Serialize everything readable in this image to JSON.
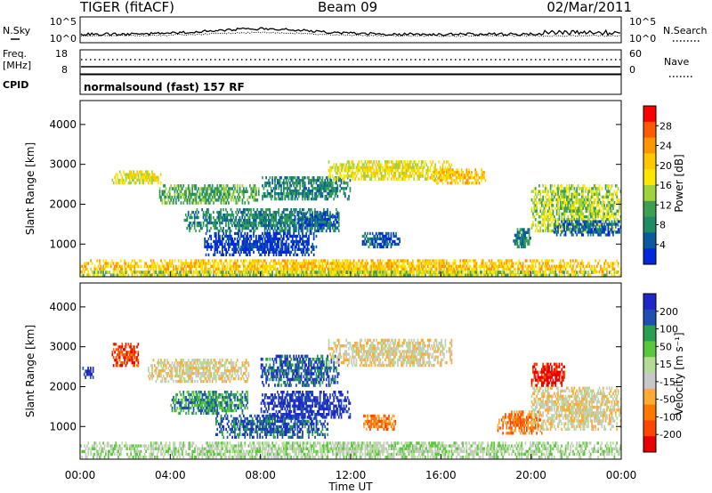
{
  "header": {
    "station": "TIGER (fitACF)",
    "beam": "Beam 09",
    "date": "02/Mar/2011"
  },
  "panels": {
    "nsky": {
      "label": "N.Sky",
      "right_label": "N.Search",
      "ticks_left": [
        "10^5",
        "10^0"
      ],
      "ticks_right": [
        "10^5",
        "10^0"
      ]
    },
    "freq": {
      "label_line1": "Freq.",
      "label_line2": "[MHz]",
      "ticks_left": [
        "18",
        "8"
      ],
      "right_label": "Nave",
      "ticks_right": [
        "60",
        "0"
      ]
    },
    "cpid": {
      "label": "CPID",
      "text": "normalsound (fast) 157 RF"
    }
  },
  "colorbars": {
    "power": {
      "label": "Power [dB]",
      "ticks": [
        "28",
        "24",
        "20",
        "16",
        "12",
        "8",
        "4"
      ],
      "colors": [
        "#ff0000",
        "#ff5a00",
        "#ff9600",
        "#ffc800",
        "#ffe600",
        "#a0d23c",
        "#3ca050",
        "#1e8c64",
        "#0a5aa0",
        "#0028dc"
      ]
    },
    "velocity": {
      "label": "Velocity [m s⁻¹]",
      "ticks": [
        "200",
        "100",
        "50",
        "15",
        "-15",
        "-50",
        "-100",
        "-200"
      ],
      "colors": [
        "#1e28c8",
        "#1e50b4",
        "#28a050",
        "#5ac83c",
        "#b4dc96",
        "#c8c8c8",
        "#ffaa32",
        "#ff7800",
        "#ff4600",
        "#e60000"
      ]
    }
  },
  "x_axis": {
    "label": "Time UT",
    "ticks": [
      "00:00",
      "04:00",
      "08:00",
      "12:00",
      "16:00",
      "20:00",
      "00:00"
    ]
  },
  "chart_data": [
    {
      "type": "heatmap",
      "title": "Power",
      "xlabel": "Time UT",
      "ylabel": "Slant Range [km]",
      "x_range_hours": [
        0,
        24
      ],
      "ylim": [
        180,
        4600
      ],
      "y_ticks": [
        1000,
        2000,
        3000,
        4000
      ],
      "colorbar": "Power [dB]",
      "regions": [
        {
          "t0": 0.0,
          "t1": 24.0,
          "r0": 200,
          "r1": 620,
          "level": 3
        },
        {
          "t0": 0.0,
          "t1": 24.0,
          "r0": 180,
          "r1": 330,
          "level": 5
        },
        {
          "t0": 1.4,
          "t1": 3.6,
          "r0": 2500,
          "r1": 2850,
          "level": 4
        },
        {
          "t0": 3.5,
          "t1": 8.0,
          "r0": 2000,
          "r1": 2500,
          "level": 6
        },
        {
          "t0": 4.6,
          "t1": 11.5,
          "r0": 1300,
          "r1": 1900,
          "level": 7
        },
        {
          "t0": 5.5,
          "t1": 10.5,
          "r0": 700,
          "r1": 1300,
          "level": 9
        },
        {
          "t0": 9.5,
          "t1": 11.5,
          "r0": 1300,
          "r1": 1800,
          "level": 8
        },
        {
          "t0": 8.0,
          "t1": 12.0,
          "r0": 2100,
          "r1": 2700,
          "level": 7
        },
        {
          "t0": 12.5,
          "t1": 14.2,
          "r0": 900,
          "r1": 1300,
          "level": 8
        },
        {
          "t0": 11.0,
          "t1": 16.5,
          "r0": 2600,
          "r1": 3100,
          "level": 4
        },
        {
          "t0": 15.5,
          "t1": 18.0,
          "r0": 2500,
          "r1": 2900,
          "level": 3
        },
        {
          "t0": 19.2,
          "t1": 20.0,
          "r0": 900,
          "r1": 1400,
          "level": 7
        },
        {
          "t0": 20.0,
          "t1": 24.0,
          "r0": 1300,
          "r1": 2500,
          "level": 5
        },
        {
          "t0": 21.0,
          "t1": 24.0,
          "r0": 1200,
          "r1": 1600,
          "level": 8
        }
      ]
    },
    {
      "type": "heatmap",
      "title": "Velocity",
      "xlabel": "Time UT",
      "ylabel": "Slant Range [km]",
      "x_range_hours": [
        0,
        24
      ],
      "ylim": [
        180,
        4600
      ],
      "y_ticks": [
        1000,
        2000,
        3000,
        4000
      ],
      "colorbar": "Velocity [m s⁻¹]",
      "regions": [
        {
          "t0": 0.0,
          "t1": 24.0,
          "r0": 200,
          "r1": 620,
          "level": 4
        },
        {
          "t0": 0.1,
          "t1": 0.6,
          "r0": 2200,
          "r1": 2500,
          "level": 0
        },
        {
          "t0": 1.4,
          "t1": 2.6,
          "r0": 2500,
          "r1": 3100,
          "level": 8
        },
        {
          "t0": 3.0,
          "t1": 7.5,
          "r0": 2100,
          "r1": 2700,
          "level": 5
        },
        {
          "t0": 4.0,
          "t1": 7.5,
          "r0": 1300,
          "r1": 1900,
          "level": 2
        },
        {
          "t0": 6.0,
          "t1": 11.0,
          "r0": 700,
          "r1": 1300,
          "level": 1
        },
        {
          "t0": 8.0,
          "t1": 12.0,
          "r0": 1200,
          "r1": 1900,
          "level": 0
        },
        {
          "t0": 8.0,
          "t1": 11.5,
          "r0": 2000,
          "r1": 2800,
          "level": 1
        },
        {
          "t0": 11.0,
          "t1": 16.5,
          "r0": 2500,
          "r1": 3200,
          "level": 5
        },
        {
          "t0": 12.5,
          "t1": 14.0,
          "r0": 900,
          "r1": 1300,
          "level": 7
        },
        {
          "t0": 18.5,
          "t1": 20.5,
          "r0": 800,
          "r1": 1400,
          "level": 7
        },
        {
          "t0": 20.0,
          "t1": 21.5,
          "r0": 2000,
          "r1": 2600,
          "level": 9
        },
        {
          "t0": 20.0,
          "t1": 24.0,
          "r0": 900,
          "r1": 2000,
          "level": 5
        }
      ]
    }
  ]
}
